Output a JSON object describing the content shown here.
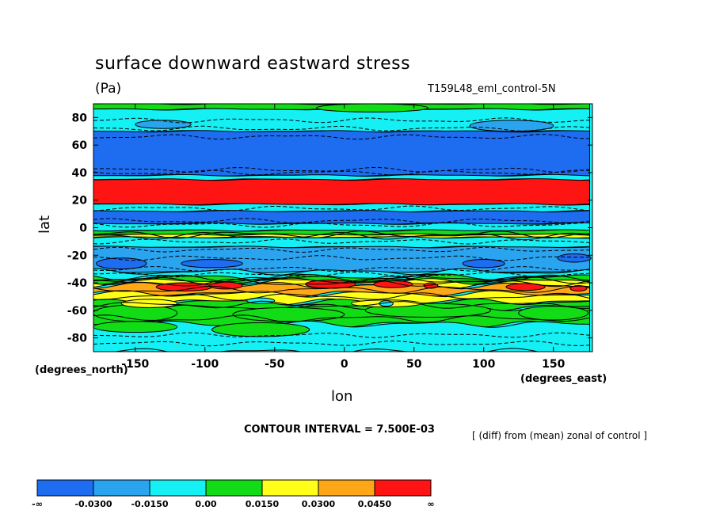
{
  "chart_data": {
    "type": "heatmap",
    "title": "surface downward eastward stress",
    "units": "(Pa)",
    "run_label": "T159L48_eml_control-5N",
    "xlabel": "lon",
    "xlabel_units": "(degrees_east)",
    "ylabel": "lat",
    "ylabel_units": "(degrees_north)",
    "xlim": [
      -180,
      178
    ],
    "ylim": [
      -90,
      90
    ],
    "x_ticks": [
      -150,
      -100,
      -50,
      0,
      50,
      100,
      150
    ],
    "x_tick_labels": [
      "-150",
      "-100",
      "-50",
      "0",
      "50",
      "100",
      "150"
    ],
    "y_ticks": [
      80,
      60,
      40,
      20,
      0,
      -20,
      -40,
      -60,
      -80
    ],
    "y_tick_labels": [
      "80",
      "60",
      "40",
      "20",
      "0",
      "-20",
      "-40",
      "-60",
      "-80"
    ],
    "contour_interval_label": "CONTOUR INTERVAL = 7.500E-03",
    "footnote": "[ (diff) from (mean) zonal of control ]",
    "colorbar": {
      "labels": [
        "-∞",
        "-0.0300",
        "-0.0150",
        "0.00",
        "0.0150",
        "0.0300",
        "0.0450",
        "∞"
      ],
      "colors": [
        "#1e6cf0",
        "#2ba4f0",
        "#14f0f4",
        "#12dc16",
        "#ffff19",
        "#ffa817",
        "#ff1414"
      ]
    },
    "zonal_bands": [
      {
        "lat_from": 90,
        "lat_to": 86,
        "level": 3
      },
      {
        "lat_from": 86,
        "lat_to": 70,
        "level": 2
      },
      {
        "lat_from": 70,
        "lat_to": 38,
        "level": 0
      },
      {
        "lat_from": 38,
        "lat_to": 35,
        "level": 2
      },
      {
        "lat_from": 35,
        "lat_to": 17,
        "level": 6
      },
      {
        "lat_from": 17,
        "lat_to": 12,
        "level": 2
      },
      {
        "lat_from": 12,
        "lat_to": 3,
        "level": 0
      },
      {
        "lat_from": 3,
        "lat_to": -2,
        "level": 2
      },
      {
        "lat_from": -2,
        "lat_to": -5,
        "level": 3
      },
      {
        "lat_from": -5,
        "lat_to": -7,
        "level": 4
      },
      {
        "lat_from": -7,
        "lat_to": -14,
        "level": 2
      },
      {
        "lat_from": -14,
        "lat_to": -32,
        "level": 1
      },
      {
        "lat_from": -32,
        "lat_to": -36,
        "level": 2
      },
      {
        "lat_from": -36,
        "lat_to": -39,
        "level": 3
      },
      {
        "lat_from": -39,
        "lat_to": -42,
        "level": 4
      },
      {
        "lat_from": -42,
        "lat_to": -48,
        "level": 5
      },
      {
        "lat_from": -48,
        "lat_to": -54,
        "level": 4
      },
      {
        "lat_from": -54,
        "lat_to": -58,
        "level": 3
      },
      {
        "lat_from": -58,
        "lat_to": -70,
        "level": 3
      },
      {
        "lat_from": -70,
        "lat_to": -90,
        "level": 2
      }
    ],
    "patches": [
      {
        "lon": -160,
        "lat": -26,
        "rlon": 18,
        "rlat": 4,
        "level": 0
      },
      {
        "lon": -95,
        "lat": -26,
        "rlon": 22,
        "rlat": 3,
        "level": 0
      },
      {
        "lon": 100,
        "lat": -26,
        "rlon": 15,
        "rlat": 3,
        "level": 0
      },
      {
        "lon": 165,
        "lat": -22,
        "rlon": 12,
        "rlat": 3,
        "level": 0
      },
      {
        "lon": -115,
        "lat": -43,
        "rlon": 20,
        "rlat": 3,
        "level": 6
      },
      {
        "lon": -85,
        "lat": -42,
        "rlon": 12,
        "rlat": 2.5,
        "level": 6
      },
      {
        "lon": -10,
        "lat": -41,
        "rlon": 18,
        "rlat": 3,
        "level": 6
      },
      {
        "lon": 35,
        "lat": -41,
        "rlon": 14,
        "rlat": 2.5,
        "level": 6
      },
      {
        "lon": 130,
        "lat": -43,
        "rlon": 14,
        "rlat": 2.5,
        "level": 6
      },
      {
        "lon": 168,
        "lat": -44,
        "rlon": 6,
        "rlat": 2,
        "level": 6
      },
      {
        "lon": 62,
        "lat": -42,
        "rlon": 5,
        "rlat": 2,
        "level": 6
      },
      {
        "lon": -150,
        "lat": -62,
        "rlon": 30,
        "rlat": 6,
        "level": 3
      },
      {
        "lon": -40,
        "lat": -63,
        "rlon": 40,
        "rlat": 5,
        "level": 3
      },
      {
        "lon": 60,
        "lat": -60,
        "rlon": 45,
        "rlat": 5,
        "level": 3
      },
      {
        "lon": 150,
        "lat": -62,
        "rlon": 25,
        "rlat": 5,
        "level": 3
      },
      {
        "lon": -60,
        "lat": -74,
        "rlon": 35,
        "rlat": 5,
        "level": 3
      },
      {
        "lon": -150,
        "lat": -72,
        "rlon": 30,
        "rlat": 4,
        "level": 3
      },
      {
        "lon": -140,
        "lat": -55,
        "rlon": 20,
        "rlat": 3,
        "level": 4
      },
      {
        "lon": 30,
        "lat": -55,
        "rlon": 25,
        "rlat": 2.5,
        "level": 4
      },
      {
        "lon": -60,
        "lat": -53,
        "rlon": 10,
        "rlat": 2,
        "level": 2
      },
      {
        "lon": 30,
        "lat": -55,
        "rlon": 5,
        "rlat": 2,
        "level": 2
      },
      {
        "lon": 120,
        "lat": 74,
        "rlon": 30,
        "rlat": 4,
        "level": 1
      },
      {
        "lon": -130,
        "lat": 75,
        "rlon": 20,
        "rlat": 3,
        "level": 1
      },
      {
        "lon": 20,
        "lat": 87,
        "rlon": 40,
        "rlat": 3,
        "level": 3
      }
    ]
  }
}
